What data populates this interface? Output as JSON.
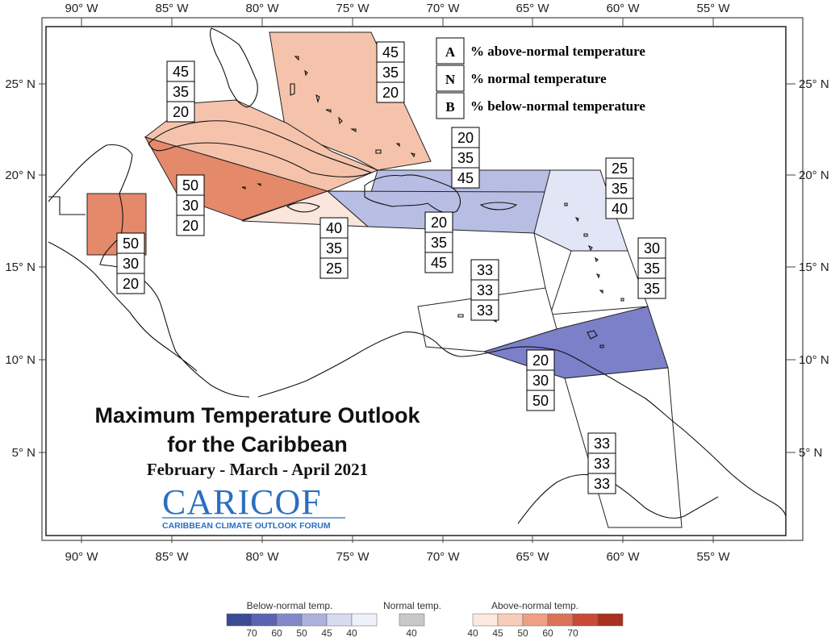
{
  "map": {
    "lon_labels": [
      "90° W",
      "85° W",
      "80° W",
      "75° W",
      "70° W",
      "65° W",
      "60° W",
      "55° W"
    ],
    "lat_labels": [
      "25° N",
      "20° N",
      "15° N",
      "10° N",
      "5° N"
    ]
  },
  "key": {
    "rows": [
      {
        "letter": "A",
        "text": "% above-normal temperature"
      },
      {
        "letter": "N",
        "text": "% normal temperature"
      },
      {
        "letter": "B",
        "text": "% below-normal temperature"
      }
    ]
  },
  "regions": [
    {
      "id": "bahamas",
      "fill": "#f5c3ac",
      "values": [
        "45",
        "35",
        "20"
      ]
    },
    {
      "id": "cuba",
      "fill": "#f5c3ac",
      "values": [
        "45",
        "35",
        "20"
      ]
    },
    {
      "id": "caribbean-west",
      "fill": "#e5896b",
      "values": [
        "50",
        "30",
        "20"
      ]
    },
    {
      "id": "belize",
      "fill": "#e5896b",
      "values": [
        "50",
        "30",
        "20"
      ]
    },
    {
      "id": "jamaica",
      "fill": "#fbe6dd",
      "values": [
        "40",
        "35",
        "25"
      ]
    },
    {
      "id": "turks-caicos",
      "fill": "#b8bde3",
      "values": [
        "20",
        "35",
        "45"
      ]
    },
    {
      "id": "hispaniola",
      "fill": "#b8bde3",
      "values": [
        "20",
        "35",
        "45"
      ]
    },
    {
      "id": "leeward",
      "fill": "#e2e5f5",
      "values": [
        "25",
        "35",
        "40"
      ]
    },
    {
      "id": "windward",
      "fill": "#ffffff",
      "values": [
        "30",
        "35",
        "35"
      ]
    },
    {
      "id": "abc-islands",
      "fill": "#ffffff",
      "values": [
        "33",
        "33",
        "33"
      ]
    },
    {
      "id": "trinidad",
      "fill": "#7b80c9",
      "values": [
        "20",
        "30",
        "50"
      ]
    },
    {
      "id": "guianas",
      "fill": "#ffffff",
      "values": [
        "33",
        "33",
        "33"
      ]
    }
  ],
  "title": {
    "line1": "Maximum Temperature Outlook",
    "line2": "for the Caribbean",
    "period": "February - March - April 2021"
  },
  "logo": {
    "name": "CARICOF",
    "subtitle": "CARIBBEAN CLIMATE OUTLOOK FORUM"
  },
  "scale": {
    "below": {
      "title": "Below-normal temp.",
      "colors": [
        "#3a4a94",
        "#5b64b3",
        "#8289c9",
        "#adb2dc",
        "#d7daf0",
        "#eef0fa"
      ],
      "labels": [
        "70",
        "60",
        "50",
        "45",
        "40"
      ]
    },
    "normal": {
      "title": "Normal temp.",
      "color": "#c8c8c8",
      "label": "40"
    },
    "above": {
      "title": "Above-normal temp.",
      "colors": [
        "#fbe9e0",
        "#f6cdb8",
        "#ef9f82",
        "#de7257",
        "#c84a37",
        "#a8311f"
      ],
      "labels": [
        "40",
        "45",
        "50",
        "60",
        "70"
      ]
    }
  }
}
